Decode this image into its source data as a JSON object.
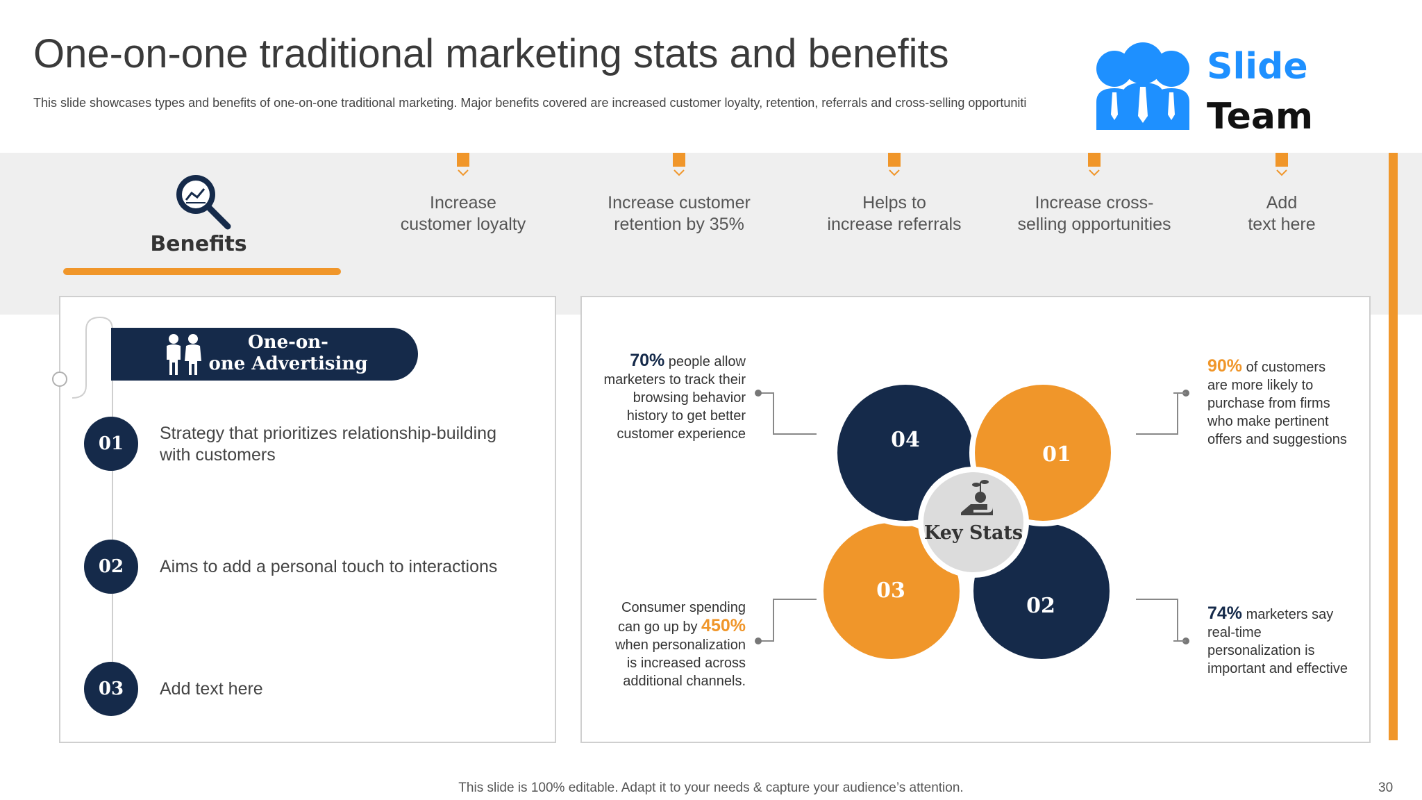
{
  "header": {
    "title": "One-on-one traditional marketing stats and benefits",
    "subtitle": "This slide showcases types and benefits of one-on-one traditional marketing. Major benefits covered are increased customer loyalty, retention, referrals and cross-selling opportuniti"
  },
  "logo": {
    "line1": "Slide",
    "line2": "Team",
    "color": "#1e90ff"
  },
  "benefits": {
    "label": "Benefits",
    "items": [
      {
        "line1": "Increase",
        "line2": "customer loyalty"
      },
      {
        "line1": "Increase customer",
        "line2": "retention by 35%"
      },
      {
        "line1": "Helps to",
        "line2": "increase referrals"
      },
      {
        "line1": "Increase cross-",
        "line2": "selling opportunities"
      },
      {
        "line1": "Add",
        "line2": "text here"
      }
    ]
  },
  "left_panel": {
    "heading_line1": "One-on-",
    "heading_line2": "one Advertising",
    "items": [
      {
        "num": "01",
        "line1": "Strategy that prioritizes relationship-building",
        "line2": "with customers"
      },
      {
        "num": "02",
        "line1": "Aims to add a personal touch to interactions",
        "line2": ""
      },
      {
        "num": "03",
        "line1": "Add text here",
        "line2": ""
      }
    ]
  },
  "key_stats": {
    "center_label": "Key Stats",
    "petals": [
      "01",
      "02",
      "03",
      "04"
    ],
    "stat_04": {
      "value": "70%",
      "lines": [
        "people allow",
        "marketers to track their",
        "browsing behavior",
        "history to get better",
        "customer experience"
      ]
    },
    "stat_01": {
      "value": "90%",
      "lines": [
        "of customers",
        "are more likely to",
        "purchase from firms",
        "who make pertinent",
        "offers and suggestions"
      ]
    },
    "stat_03": {
      "pre1": "Consumer spending",
      "pre2": "can go up by",
      "value": "450%",
      "lines": [
        "when personalization",
        "is increased across",
        "additional channels."
      ]
    },
    "stat_02": {
      "value": "74%",
      "lines": [
        "marketers say",
        "real-time",
        "personalization is",
        "important and effective"
      ]
    }
  },
  "colors": {
    "navy": "#152a4a",
    "orange": "#f0962a",
    "gray_band": "#efefef"
  },
  "footer": {
    "text": "This slide is 100% editable. Adapt it to your needs & capture your audience’s attention.",
    "page": "30"
  }
}
